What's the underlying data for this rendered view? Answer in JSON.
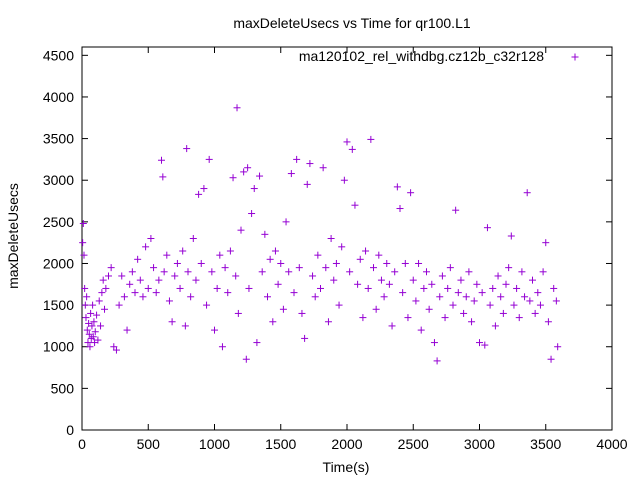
{
  "chart_data": {
    "type": "scatter",
    "title": "maxDeleteUsecs vs Time for qr100.L1",
    "xlabel": "Time(s)",
    "ylabel": "maxDeleteUsecs",
    "xlim": [
      0,
      4000
    ],
    "ylim": [
      0,
      4600
    ],
    "xticks": [
      "0",
      "500",
      "1000",
      "1500",
      "2000",
      "2500",
      "3000",
      "3500",
      "4000"
    ],
    "yticks": [
      "0",
      "500",
      "1000",
      "1500",
      "2000",
      "2500",
      "3000",
      "3500",
      "4000",
      "4500"
    ],
    "grid": false,
    "legend": "top-right",
    "series": [
      {
        "name": "ma120102_rel_withdbg.cz12b_c32r128",
        "color": "#9400d3",
        "marker": "plus",
        "points": [
          [
            5,
            2250
          ],
          [
            10,
            2480
          ],
          [
            15,
            2100
          ],
          [
            20,
            1700
          ],
          [
            25,
            1500
          ],
          [
            30,
            1350
          ],
          [
            35,
            1600
          ],
          [
            40,
            1200
          ],
          [
            45,
            1050
          ],
          [
            50,
            1280
          ],
          [
            55,
            1150
          ],
          [
            60,
            1000
          ],
          [
            65,
            1400
          ],
          [
            70,
            1100
          ],
          [
            75,
            1250
          ],
          [
            80,
            1500
          ],
          [
            85,
            1120
          ],
          [
            90,
            1300
          ],
          [
            95,
            1050
          ],
          [
            100,
            1180
          ],
          [
            110,
            1380
          ],
          [
            120,
            1080
          ],
          [
            130,
            1550
          ],
          [
            140,
            1250
          ],
          [
            150,
            1650
          ],
          [
            160,
            1800
          ],
          [
            170,
            1450
          ],
          [
            180,
            1700
          ],
          [
            200,
            1850
          ],
          [
            220,
            1950
          ],
          [
            240,
            1000
          ],
          [
            260,
            960
          ],
          [
            280,
            1500
          ],
          [
            300,
            1850
          ],
          [
            320,
            1600
          ],
          [
            340,
            1200
          ],
          [
            360,
            1750
          ],
          [
            380,
            1900
          ],
          [
            400,
            1650
          ],
          [
            420,
            2050
          ],
          [
            440,
            1800
          ],
          [
            460,
            1600
          ],
          [
            480,
            2200
          ],
          [
            500,
            1700
          ],
          [
            520,
            2300
          ],
          [
            540,
            1950
          ],
          [
            560,
            1650
          ],
          [
            580,
            1800
          ],
          [
            600,
            3240
          ],
          [
            610,
            3040
          ],
          [
            620,
            1900
          ],
          [
            640,
            2100
          ],
          [
            660,
            1550
          ],
          [
            680,
            1300
          ],
          [
            700,
            1850
          ],
          [
            720,
            2000
          ],
          [
            740,
            1700
          ],
          [
            760,
            2150
          ],
          [
            780,
            1250
          ],
          [
            790,
            3380
          ],
          [
            800,
            1900
          ],
          [
            820,
            1600
          ],
          [
            840,
            2300
          ],
          [
            860,
            1800
          ],
          [
            880,
            2830
          ],
          [
            900,
            2000
          ],
          [
            920,
            2900
          ],
          [
            940,
            1500
          ],
          [
            960,
            3250
          ],
          [
            980,
            1900
          ],
          [
            1000,
            1200
          ],
          [
            1020,
            1700
          ],
          [
            1040,
            2100
          ],
          [
            1060,
            1000
          ],
          [
            1080,
            1950
          ],
          [
            1100,
            1650
          ],
          [
            1120,
            2150
          ],
          [
            1140,
            3030
          ],
          [
            1160,
            1850
          ],
          [
            1170,
            3870
          ],
          [
            1180,
            1400
          ],
          [
            1200,
            2400
          ],
          [
            1220,
            3100
          ],
          [
            1240,
            850
          ],
          [
            1250,
            3150
          ],
          [
            1260,
            1700
          ],
          [
            1280,
            2600
          ],
          [
            1300,
            2900
          ],
          [
            1320,
            1050
          ],
          [
            1340,
            3050
          ],
          [
            1360,
            1900
          ],
          [
            1380,
            2350
          ],
          [
            1400,
            1600
          ],
          [
            1420,
            2050
          ],
          [
            1440,
            1300
          ],
          [
            1460,
            2150
          ],
          [
            1480,
            1750
          ],
          [
            1500,
            2000
          ],
          [
            1520,
            1450
          ],
          [
            1540,
            2500
          ],
          [
            1560,
            1900
          ],
          [
            1580,
            3080
          ],
          [
            1600,
            1650
          ],
          [
            1620,
            3250
          ],
          [
            1640,
            1950
          ],
          [
            1660,
            1400
          ],
          [
            1680,
            1100
          ],
          [
            1700,
            2950
          ],
          [
            1720,
            3200
          ],
          [
            1740,
            1850
          ],
          [
            1760,
            1600
          ],
          [
            1780,
            2100
          ],
          [
            1800,
            1700
          ],
          [
            1820,
            3150
          ],
          [
            1840,
            1950
          ],
          [
            1860,
            1300
          ],
          [
            1880,
            2300
          ],
          [
            1900,
            1800
          ],
          [
            1920,
            2000
          ],
          [
            1940,
            1500
          ],
          [
            1960,
            2200
          ],
          [
            1980,
            3000
          ],
          [
            2000,
            3460
          ],
          [
            2020,
            1900
          ],
          [
            2040,
            3370
          ],
          [
            2060,
            2700
          ],
          [
            2080,
            1750
          ],
          [
            2100,
            2050
          ],
          [
            2120,
            1350
          ],
          [
            2140,
            2150
          ],
          [
            2160,
            1700
          ],
          [
            2180,
            3490
          ],
          [
            2200,
            1950
          ],
          [
            2220,
            1450
          ],
          [
            2240,
            2100
          ],
          [
            2260,
            1800
          ],
          [
            2280,
            1600
          ],
          [
            2300,
            2000
          ],
          [
            2320,
            1750
          ],
          [
            2340,
            1250
          ],
          [
            2360,
            1900
          ],
          [
            2380,
            2920
          ],
          [
            2400,
            2660
          ],
          [
            2420,
            1650
          ],
          [
            2440,
            2000
          ],
          [
            2460,
            1350
          ],
          [
            2480,
            2850
          ],
          [
            2500,
            1800
          ],
          [
            2520,
            1550
          ],
          [
            2540,
            2000
          ],
          [
            2560,
            1200
          ],
          [
            2580,
            1700
          ],
          [
            2600,
            1900
          ],
          [
            2620,
            1450
          ],
          [
            2640,
            1750
          ],
          [
            2660,
            1050
          ],
          [
            2680,
            830
          ],
          [
            2700,
            1600
          ],
          [
            2720,
            1850
          ],
          [
            2740,
            1350
          ],
          [
            2760,
            1700
          ],
          [
            2780,
            1950
          ],
          [
            2800,
            1500
          ],
          [
            2820,
            2640
          ],
          [
            2840,
            1650
          ],
          [
            2860,
            1800
          ],
          [
            2880,
            1400
          ],
          [
            2900,
            1600
          ],
          [
            2920,
            1900
          ],
          [
            2940,
            1300
          ],
          [
            2960,
            1550
          ],
          [
            2980,
            1750
          ],
          [
            3000,
            1050
          ],
          [
            3020,
            1650
          ],
          [
            3040,
            1020
          ],
          [
            3060,
            2430
          ],
          [
            3080,
            1500
          ],
          [
            3100,
            1700
          ],
          [
            3120,
            1250
          ],
          [
            3140,
            1850
          ],
          [
            3160,
            1600
          ],
          [
            3180,
            1400
          ],
          [
            3200,
            1750
          ],
          [
            3220,
            1950
          ],
          [
            3240,
            2330
          ],
          [
            3260,
            1500
          ],
          [
            3280,
            1700
          ],
          [
            3300,
            1350
          ],
          [
            3320,
            1900
          ],
          [
            3340,
            1600
          ],
          [
            3360,
            2850
          ],
          [
            3380,
            1550
          ],
          [
            3400,
            1800
          ],
          [
            3420,
            1400
          ],
          [
            3440,
            1650
          ],
          [
            3460,
            1500
          ],
          [
            3480,
            1900
          ],
          [
            3500,
            2250
          ],
          [
            3520,
            1300
          ],
          [
            3540,
            850
          ],
          [
            3560,
            1700
          ],
          [
            3580,
            1550
          ],
          [
            3590,
            1000
          ]
        ]
      }
    ]
  }
}
